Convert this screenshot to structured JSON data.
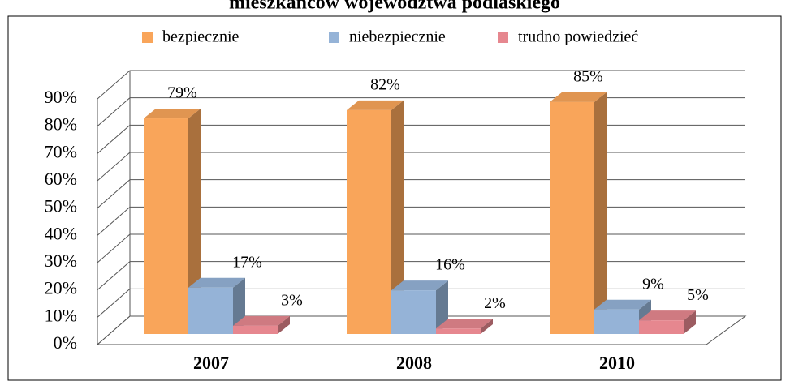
{
  "chart_data": {
    "type": "bar3d",
    "title": "mieszkańców województwa podlaskiego",
    "categories": [
      "2007",
      "2008",
      "2010"
    ],
    "series": [
      {
        "name": "bezpiecznie",
        "color": "#f9a55a",
        "values": [
          79,
          82,
          85
        ],
        "value_labels": [
          "79%",
          "82%",
          "85%"
        ]
      },
      {
        "name": "niebezpiecznie",
        "color": "#95b3d7",
        "values": [
          17,
          16,
          9
        ],
        "value_labels": [
          "17%",
          "16%",
          "9%"
        ]
      },
      {
        "name": "trudno powiedzieć",
        "color": "#e6878f",
        "values": [
          3,
          2,
          5
        ],
        "value_labels": [
          "3%",
          "2%",
          "5%"
        ]
      }
    ],
    "ylim": [
      0,
      90
    ],
    "yticks": [
      {
        "value": 0,
        "label": "0%"
      },
      {
        "value": 10,
        "label": "10%"
      },
      {
        "value": 20,
        "label": "20%"
      },
      {
        "value": 30,
        "label": "30%"
      },
      {
        "value": 40,
        "label": "40%"
      },
      {
        "value": 50,
        "label": "50%"
      },
      {
        "value": 60,
        "label": "60%"
      },
      {
        "value": 70,
        "label": "70%"
      },
      {
        "value": 80,
        "label": "80%"
      },
      {
        "value": 90,
        "label": "90%"
      }
    ],
    "grid": true,
    "legend": "top"
  }
}
